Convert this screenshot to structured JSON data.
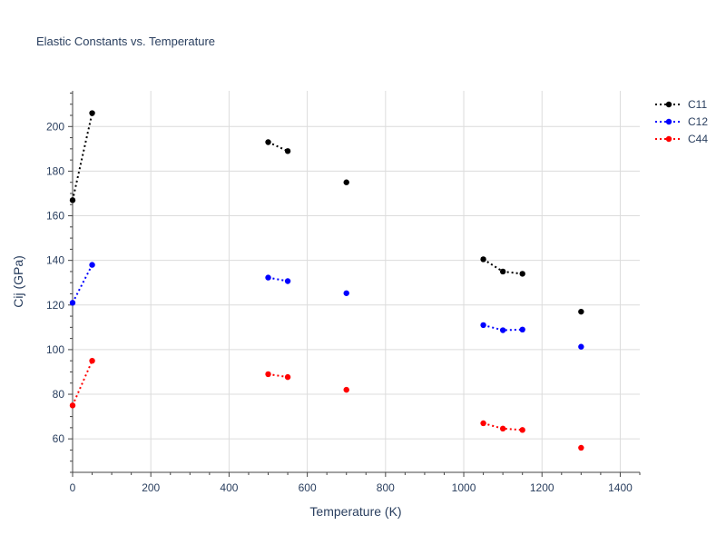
{
  "chart_data": {
    "type": "line",
    "title": "Elastic Constants vs. Temperature",
    "xlabel": "Temperature (K)",
    "ylabel": "Cij (GPa)",
    "xlim": [
      0,
      1450
    ],
    "ylim": [
      45,
      216
    ],
    "xticks": [
      0,
      200,
      400,
      600,
      800,
      1000,
      1200,
      1400
    ],
    "yticks": [
      60,
      80,
      100,
      120,
      140,
      160,
      180,
      200
    ],
    "grid": true,
    "legend_position": "top-right",
    "line_style": "dotted",
    "series": [
      {
        "name": "C11",
        "color": "#000000",
        "segments": [
          [
            [
              0,
              167
            ],
            [
              50,
              206
            ]
          ],
          [
            [
              500,
              193
            ],
            [
              550,
              189
            ]
          ],
          [
            [
              700,
              175
            ]
          ],
          [
            [
              1050,
              140.5
            ],
            [
              1100,
              135
            ],
            [
              1150,
              134
            ]
          ],
          [
            [
              1300,
              117
            ]
          ]
        ]
      },
      {
        "name": "C12",
        "color": "#0000ff",
        "segments": [
          [
            [
              0,
              121
            ],
            [
              50,
              138
            ]
          ],
          [
            [
              500,
              132.3
            ],
            [
              550,
              130.7
            ]
          ],
          [
            [
              700,
              125.3
            ]
          ],
          [
            [
              1050,
              111
            ],
            [
              1100,
              108.7
            ],
            [
              1150,
              109
            ]
          ],
          [
            [
              1300,
              101.3
            ]
          ]
        ]
      },
      {
        "name": "C44",
        "color": "#ff0000",
        "segments": [
          [
            [
              0,
              75
            ],
            [
              50,
              95
            ]
          ],
          [
            [
              500,
              89
            ],
            [
              550,
              87.7
            ]
          ],
          [
            [
              700,
              82
            ]
          ],
          [
            [
              1050,
              67
            ],
            [
              1100,
              64.6
            ],
            [
              1150,
              64
            ]
          ],
          [
            [
              1300,
              56
            ]
          ]
        ]
      }
    ]
  }
}
